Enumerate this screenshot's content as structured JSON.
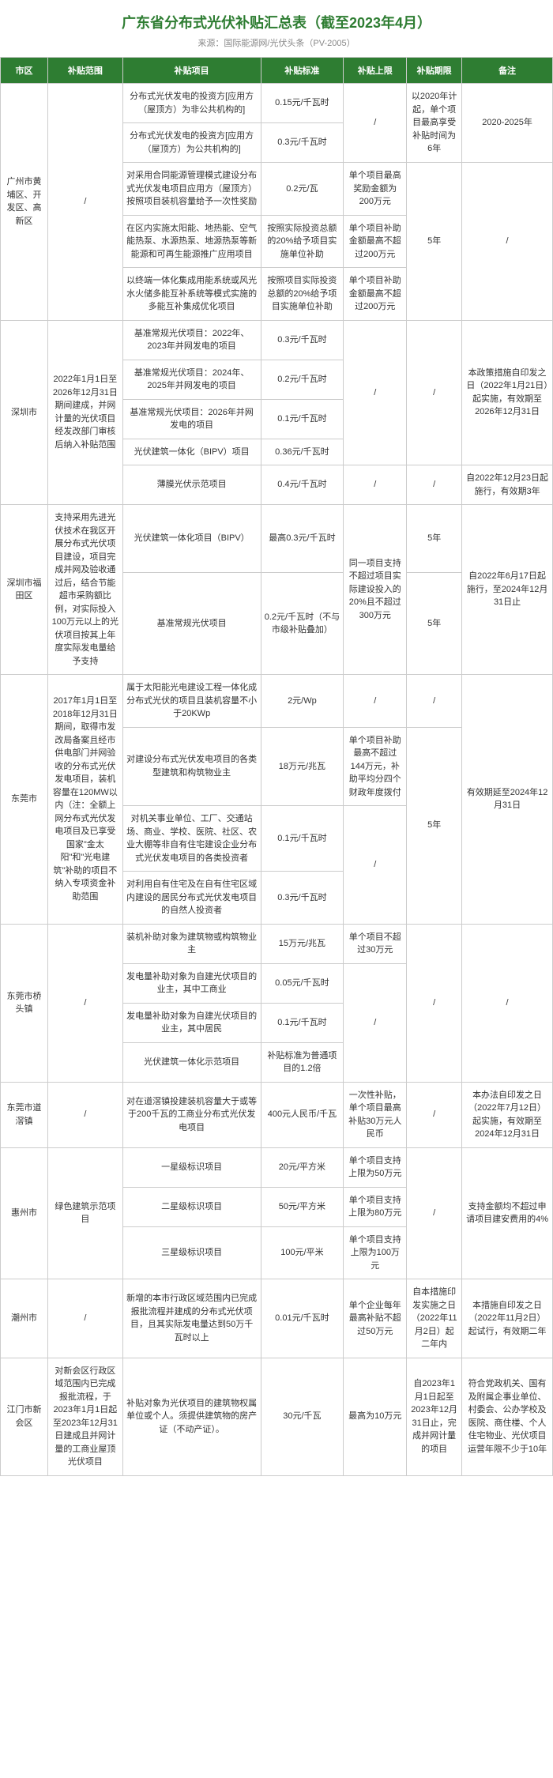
{
  "title": "广东省分布式光伏补贴汇总表（截至2023年4月）",
  "source": "来源：国际能源网/光伏头条（PV-2005）",
  "headers": [
    "市区",
    "补贴范围",
    "补贴项目",
    "补贴标准",
    "补贴上限",
    "补贴期限",
    "备注"
  ],
  "gz": {
    "region": "广州市黄埔区、开发区、高新区",
    "scope": "/",
    "r1_proj": "分布式光伏发电的投资方[应用方（屋顶方）为非公共机构的]",
    "r1_std": "0.15元/千瓦时",
    "r1_cap": "/",
    "r1_term": "以2020年计起，单个项目最高享受补贴时间为6年",
    "r1_note": "2020-2025年",
    "r2_proj": "分布式光伏发电的投资方[应用方（屋顶方）为公共机构的]",
    "r2_std": "0.3元/千瓦时",
    "r3_proj": "对采用合同能源管理模式建设分布式光伏发电项目应用方（屋顶方）按照项目装机容量给予一次性奖励",
    "r3_std": "0.2元/瓦",
    "r3_cap": "单个项目最高奖励金额为200万元",
    "r3_term": "5年",
    "r3_note": "/",
    "r4_proj": "在区内实施太阳能、地热能、空气能热泵、水源热泵、地源热泵等新能源和可再生能源推广应用项目",
    "r4_std": "按照实际投资总额的20%给予项目实施单位补助",
    "r4_cap": "单个项目补助金额最高不超过200万元",
    "r5_proj": "以终端一体化集成用能系统或风光水火储多能互补系统等模式实施的多能互补集成优化项目",
    "r5_std": "按照项目实际投资总额的20%给予项目实施单位补助",
    "r5_cap": "单个项目补助金额最高不超过200万元"
  },
  "sz": {
    "region": "深圳市",
    "scope": "2022年1月1日至2026年12月31日期间建成，并网计量的光伏项目经发改部门审核后纳入补贴范围",
    "r1_proj": "基准常规光伏项目：2022年、2023年并网发电的项目",
    "r1_std": "0.3元/千瓦时",
    "r1_cap": "/",
    "r1_term": "/",
    "r1_note": "本政策措施自印发之日（2022年1月21日）起实施，有效期至2026年12月31日",
    "r2_proj": "基准常规光伏项目：2024年、2025年并网发电的项目",
    "r2_std": "0.2元/千瓦时",
    "r3_proj": "基准常规光伏项目：2026年并网发电的项目",
    "r3_std": "0.1元/千瓦时",
    "r4_proj": "光伏建筑一体化（BIPV）项目",
    "r4_std": "0.36元/千瓦时",
    "r5_proj": "薄膜光伏示范项目",
    "r5_std": "0.4元/千瓦时",
    "r5_cap": "/",
    "r5_term": "/",
    "r5_note": "自2022年12月23日起施行，有效期3年"
  },
  "ft": {
    "region": "深圳市福田区",
    "scope": "支持采用先进光伏技术在我区开展分布式光伏项目建设，项目完成并网及验收通过后，结合节能超市采购额比例，对实际投入100万元以上的光伏项目按其上年度实际发电量给予支持",
    "r1_proj": "光伏建筑一体化项目（BIPV）",
    "r1_std": "最高0.3元/千瓦时",
    "r1_cap": "同一项目支持不超过项目实际建设投入的20%且不超过300万元",
    "r1_term": "5年",
    "r1_note": "自2022年6月17日起施行，至2024年12月31日止",
    "r2_proj": "基准常规光伏项目",
    "r2_std": "0.2元/千瓦时（不与市级补贴叠加）",
    "r2_term": "5年"
  },
  "dg": {
    "region": "东莞市",
    "scope": "2017年1月1日至2018年12月31日期间，取得市发改局备案且经市供电部门并网验收的分布式光伏发电项目，装机容量在120MW以内（注：全额上网分布式光伏发电项目及已享受国家\"金太阳\"和\"光电建筑\"补助的项目不纳入专项资金补助范围",
    "r1_proj": "属于太阳能光电建设工程一体化成分布式光伏的项目且装机容量不小于20KWp",
    "r1_std": "2元/Wp",
    "r1_cap": "/",
    "r1_term": "/",
    "r1_note": "有效期延至2024年12月31日",
    "r2_proj": "对建设分布式光伏发电项目的各类型建筑和构筑物业主",
    "r2_std": "18万元/兆瓦",
    "r2_cap": "单个项目补助最高不超过144万元，补助平均分四个财政年度拨付",
    "r2_term": "5年",
    "r3_proj": "对机关事业单位、工厂、交通站场、商业、学校、医院、社区、农业大棚等非自有住宅建设企业分布式光伏发电项目的各类投资者",
    "r3_std": "0.1元/千瓦时",
    "r3_cap": "/",
    "r4_proj": "对利用自有住宅及在自有住宅区域内建设的居民分布式光伏发电项目的自然人投资者",
    "r4_std": "0.3元/千瓦时"
  },
  "qt": {
    "region": "东莞市桥头镇",
    "scope": "/",
    "r1_proj": "装机补助对象为建筑物或构筑物业主",
    "r1_std": "15万元/兆瓦",
    "r1_cap": "单个项目不超过30万元",
    "r1_term": "/",
    "r1_note": "/",
    "r2_proj": "发电量补助对象为自建光伏项目的业主，其中工商业",
    "r2_std": "0.05元/千瓦时",
    "r2_cap": "/",
    "r3_proj": "发电量补助对象为自建光伏项目的业主，其中居民",
    "r3_std": "0.1元/千瓦时",
    "r4_proj": "光伏建筑一体化示范项目",
    "r4_std": "补贴标准为普通项目的1.2倍"
  },
  "dc": {
    "region": "东莞市道滘镇",
    "scope": "/",
    "proj": "对在道滘镇投建装机容量大于或等于200千瓦的工商业分布式光伏发电项目",
    "std": "400元人民币/千瓦",
    "cap": "一次性补贴，单个项目最高补贴30万元人民币",
    "term": "/",
    "note": "本办法自印发之日（2022年7月12日）起实施，有效期至2024年12月31日"
  },
  "hz": {
    "region": "惠州市",
    "scope": "绿色建筑示范项目",
    "r1_proj": "一星级标识项目",
    "r1_std": "20元/平方米",
    "r1_cap": "单个项目支持上限为50万元",
    "r1_term": "/",
    "r1_note": "支持金额均不超过申请项目建安费用的4%",
    "r2_proj": "二星级标识项目",
    "r2_std": "50元/平方米",
    "r2_cap": "单个项目支持上限为80万元",
    "r3_proj": "三星级标识项目",
    "r3_std": "100元/平米",
    "r3_cap": "单个项目支持上限为100万元"
  },
  "cz": {
    "region": "潮州市",
    "scope": "/",
    "proj": "新增的本市行政区域范围内已完成报批流程并建成的分布式光伏项目，且其实际发电量达到50万千瓦时以上",
    "std": "0.01元/千瓦时",
    "cap": "单个企业每年最高补贴不超过50万元",
    "term": "自本措施印发实施之日（2022年11月2日）起二年内",
    "note": "本措施自印发之日（2022年11月2日）起试行，有效期二年"
  },
  "jm": {
    "region": "江门市新会区",
    "scope": "对新会区行政区域范围内已完成报批流程，于2023年1月1日起至2023年12月31日建成且并网计量的工商业屋顶光伏项目",
    "proj": "补贴对象为光伏项目的建筑物权属单位或个人。须提供建筑物的房产证（不动产证）。",
    "std": "30元/千瓦",
    "cap": "最高为10万元",
    "term": "自2023年1月1日起至2023年12月31日止，完成并网计量的项目",
    "note": "符合党政机关、国有及附属企事业单位、村委会、公办学校及医院、商住楼、个人住宅物业、光伏项目运营年限不少于10年"
  }
}
